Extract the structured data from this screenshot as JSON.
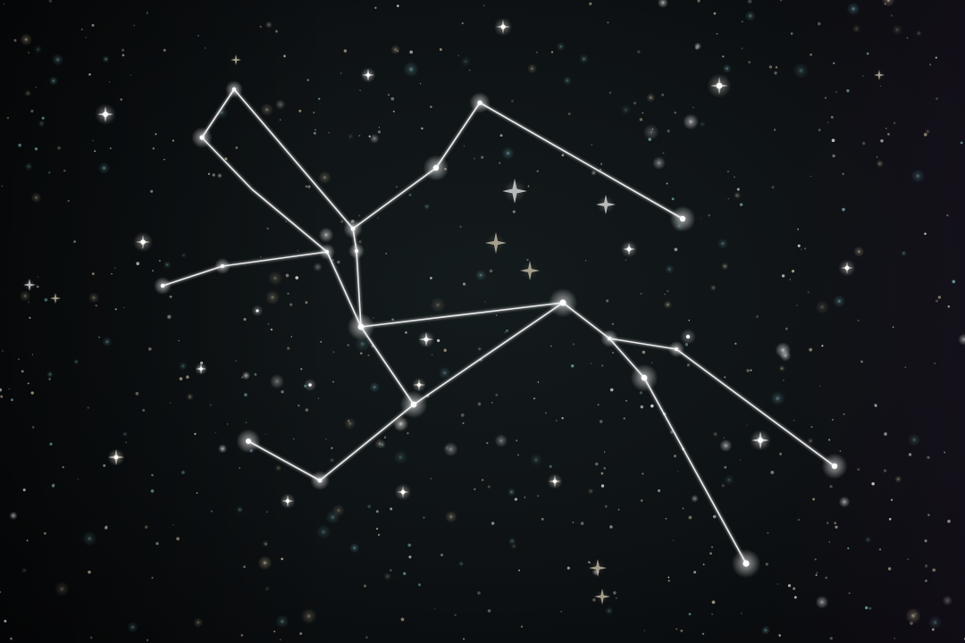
{
  "scene": {
    "subject": "constellation",
    "colors": {
      "sky_center": "#131a1c",
      "sky_edge_left": "#060809",
      "sky_edge_right": "#120e16",
      "line": "#ffffff",
      "star_bright": "#ffffff",
      "star_warm": "#d8c8a8",
      "star_cool": "#7fb8c0"
    }
  }
}
